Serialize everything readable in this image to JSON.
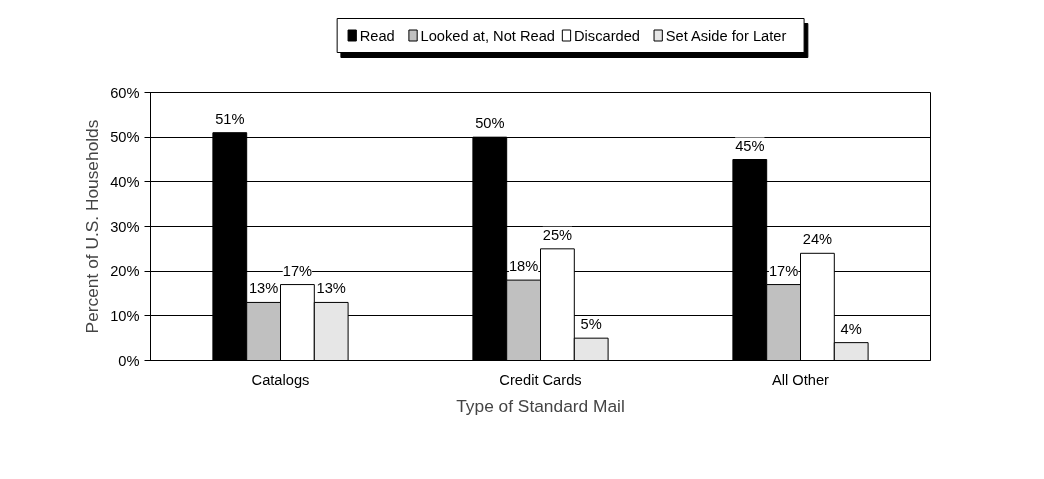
{
  "chart_data": {
    "type": "bar",
    "xlabel": "Type of Standard Mail",
    "ylabel": "Percent of U.S. Households",
    "categories": [
      "Catalogs",
      "Credit Cards",
      "All Other"
    ],
    "series": [
      {
        "name": "Read",
        "color": "#000000",
        "values": [
          51,
          50,
          45
        ],
        "value_labels": [
          "51%",
          "50%",
          "45%"
        ]
      },
      {
        "name": "Looked at, Not Read",
        "color": "#c0c0c0",
        "values": [
          13,
          18,
          17
        ],
        "value_labels": [
          "13%",
          "18%",
          "17%"
        ]
      },
      {
        "name": "Discarded",
        "color": "#ffffff",
        "values": [
          17,
          25,
          24
        ],
        "value_labels": [
          "17%",
          "25%",
          "24%"
        ]
      },
      {
        "name": "Set Aside for Later",
        "color": "#e6e6e6",
        "values": [
          13,
          5,
          4
        ],
        "value_labels": [
          "13%",
          "5%",
          "4%"
        ]
      }
    ],
    "ylim": [
      0,
      60
    ],
    "yticks": [
      {
        "value": 0,
        "label": "0%"
      },
      {
        "value": 10,
        "label": "10%"
      },
      {
        "value": 20,
        "label": "20%"
      },
      {
        "value": 30,
        "label": "30%"
      },
      {
        "value": 40,
        "label": "40%"
      },
      {
        "value": 50,
        "label": "50%"
      },
      {
        "value": 60,
        "label": "60%"
      }
    ],
    "grid": "y",
    "legend": "top"
  }
}
